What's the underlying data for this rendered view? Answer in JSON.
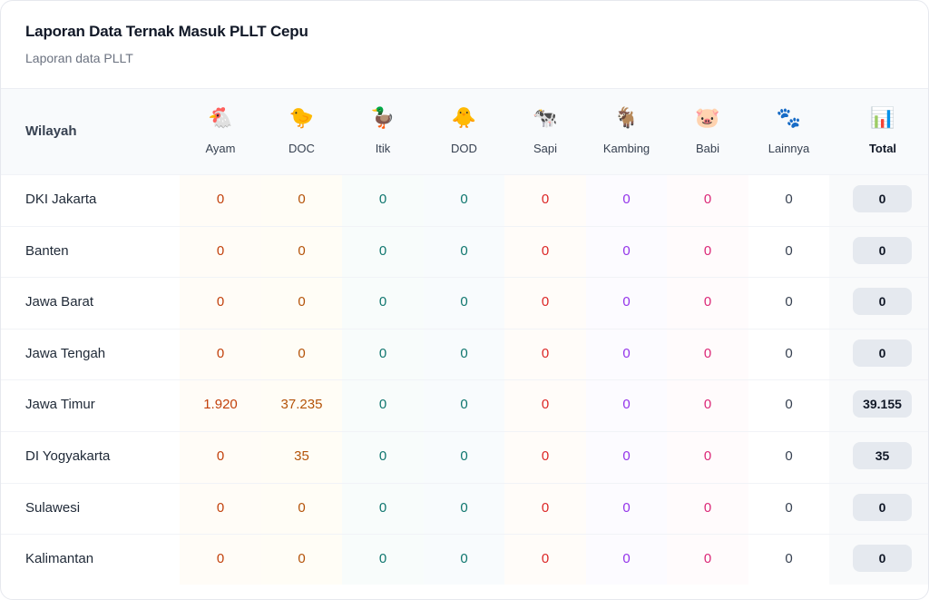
{
  "header": {
    "title": "Laporan Data Ternak Masuk PLLT Cepu",
    "subtitle": "Laporan data PLLT"
  },
  "table": {
    "region_header": "Wilayah",
    "columns": [
      {
        "key": "ayam",
        "label": "Ayam",
        "icon": "🐔",
        "icon_name": "chicken-icon",
        "color": "#c2410c",
        "bg": "#fffcf7"
      },
      {
        "key": "doc",
        "label": "DOC",
        "icon": "🐤",
        "icon_name": "chick-icon",
        "color": "#b45309",
        "bg": "#fffdf6"
      },
      {
        "key": "itik",
        "label": "Itik",
        "icon": "🦆",
        "icon_name": "duck-icon",
        "color": "#0f766e",
        "bg": "#f8fcfb"
      },
      {
        "key": "dod",
        "label": "DOD",
        "icon": "🐥",
        "icon_name": "duckling-icon",
        "color": "#0f766e",
        "bg": "#f8fbfd"
      },
      {
        "key": "sapi",
        "label": "Sapi",
        "icon": "🐄",
        "icon_name": "cow-icon",
        "color": "#dc2626",
        "bg": "#fffcf9"
      },
      {
        "key": "kambing",
        "label": "Kambing",
        "icon": "🐐",
        "icon_name": "goat-icon",
        "color": "#9333ea",
        "bg": "#fcfbff"
      },
      {
        "key": "babi",
        "label": "Babi",
        "icon": "🐷",
        "icon_name": "pig-icon",
        "color": "#db2777",
        "bg": "#fffbfc"
      },
      {
        "key": "lainnya",
        "label": "Lainnya",
        "icon": "🐾",
        "icon_name": "paw-prints-icon",
        "color": "#374151",
        "bg": "#ffffff"
      }
    ],
    "total_header": "Total",
    "total_icon": "📊",
    "rows": [
      {
        "region": "DKI Jakarta",
        "values": [
          "0",
          "0",
          "0",
          "0",
          "0",
          "0",
          "0",
          "0"
        ],
        "total": "0"
      },
      {
        "region": "Banten",
        "values": [
          "0",
          "0",
          "0",
          "0",
          "0",
          "0",
          "0",
          "0"
        ],
        "total": "0"
      },
      {
        "region": "Jawa Barat",
        "values": [
          "0",
          "0",
          "0",
          "0",
          "0",
          "0",
          "0",
          "0"
        ],
        "total": "0"
      },
      {
        "region": "Jawa Tengah",
        "values": [
          "0",
          "0",
          "0",
          "0",
          "0",
          "0",
          "0",
          "0"
        ],
        "total": "0"
      },
      {
        "region": "Jawa Timur",
        "values": [
          "1.920",
          "37.235",
          "0",
          "0",
          "0",
          "0",
          "0",
          "0"
        ],
        "total": "39.155"
      },
      {
        "region": "DI Yogyakarta",
        "values": [
          "0",
          "35",
          "0",
          "0",
          "0",
          "0",
          "0",
          "0"
        ],
        "total": "35"
      },
      {
        "region": "Sulawesi",
        "values": [
          "0",
          "0",
          "0",
          "0",
          "0",
          "0",
          "0",
          "0"
        ],
        "total": "0"
      },
      {
        "region": "Kalimantan",
        "values": [
          "0",
          "0",
          "0",
          "0",
          "0",
          "0",
          "0",
          "0"
        ],
        "total": "0"
      }
    ]
  }
}
